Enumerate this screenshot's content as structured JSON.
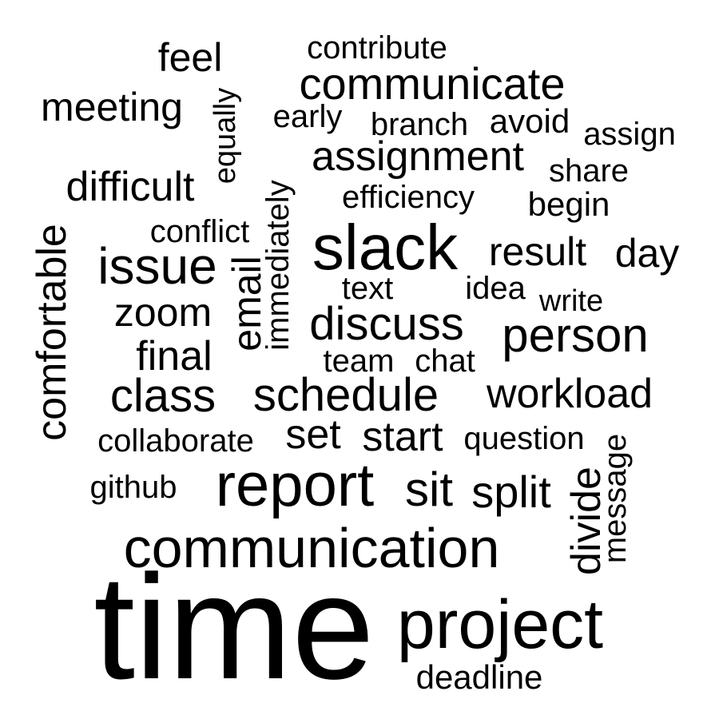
{
  "text_color": "#000000",
  "background_color": "#ffffff",
  "words": [
    "feel",
    "contribute",
    "communicate",
    "meeting",
    "equally",
    "early",
    "branch",
    "avoid",
    "assign",
    "assignment",
    "share",
    "difficult",
    "efficiency",
    "begin",
    "conflict",
    "immediately",
    "slack",
    "result",
    "day",
    "comfortable",
    "issue",
    "email",
    "text",
    "idea",
    "write",
    "zoom",
    "discuss",
    "person",
    "final",
    "team",
    "chat",
    "class",
    "schedule",
    "workload",
    "collaborate",
    "set",
    "start",
    "question",
    "message",
    "github",
    "report",
    "sit",
    "split",
    "divide",
    "communication",
    "time",
    "project",
    "deadline"
  ]
}
